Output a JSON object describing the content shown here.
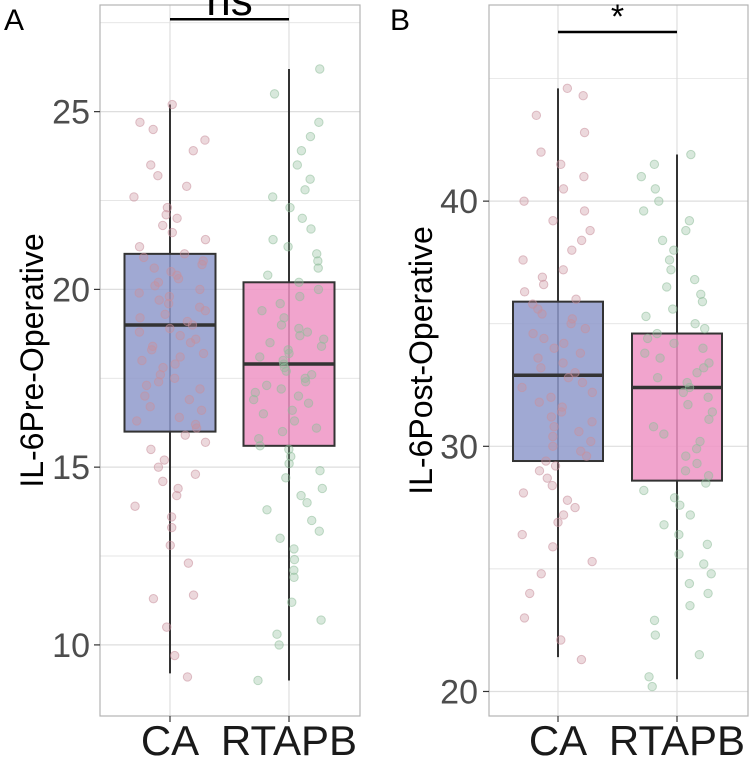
{
  "colors": {
    "box_ca": "#8f9acb",
    "box_rtapb": "#ee94c4",
    "jitter_ca": "#c98f9c",
    "jitter_rtapb": "#8fbd9a",
    "panel_border": "#b3b3b3",
    "grid": "#dedede",
    "line": "#333333",
    "tick_text": "#4d4d4d"
  },
  "chart_data": [
    {
      "type": "box",
      "panel_label": "A",
      "categories": [
        "CA",
        "RTAPB"
      ],
      "ylabel": "IL-6Pre-Operative",
      "xlabel": "",
      "ylim": [
        8.0,
        28.0
      ],
      "yticks": [
        10,
        15,
        20,
        25
      ],
      "grid": true,
      "significance": {
        "label": "ns",
        "y": 27.6
      },
      "boxes": [
        {
          "name": "CA",
          "min": 9.2,
          "q1": 16.0,
          "median": 19.0,
          "q3": 21.0,
          "max": 25.2
        },
        {
          "name": "RTAPB",
          "min": 9.0,
          "q1": 15.6,
          "median": 17.9,
          "q3": 20.2,
          "max": 26.2
        }
      ],
      "points": {
        "CA": [
          9.1,
          9.7,
          10.5,
          11.3,
          11.4,
          12.3,
          12.8,
          13.3,
          13.6,
          13.9,
          14.2,
          14.4,
          14.6,
          14.8,
          15.0,
          15.2,
          15.5,
          15.7,
          15.9,
          16.1,
          16.2,
          16.3,
          16.4,
          16.6,
          16.7,
          16.9,
          17.0,
          17.2,
          17.3,
          17.4,
          17.5,
          17.6,
          17.8,
          17.9,
          18.0,
          18.1,
          18.2,
          18.3,
          18.4,
          18.5,
          18.6,
          18.7,
          18.8,
          18.9,
          19.0,
          19.1,
          19.2,
          19.3,
          19.4,
          19.5,
          19.6,
          19.7,
          19.8,
          19.9,
          20.0,
          20.1,
          20.2,
          20.3,
          20.4,
          20.5,
          20.6,
          20.7,
          20.8,
          20.9,
          21.0,
          21.2,
          21.4,
          21.6,
          21.8,
          22.0,
          22.1,
          22.3,
          22.6,
          22.9,
          23.2,
          23.5,
          23.9,
          24.2,
          24.5,
          24.7,
          25.2
        ],
        "RTAPB": [
          9.0,
          10.0,
          10.3,
          10.7,
          11.2,
          11.9,
          12.1,
          12.4,
          12.7,
          13.0,
          13.2,
          13.5,
          13.8,
          14.0,
          14.2,
          14.4,
          14.7,
          14.9,
          15.1,
          15.3,
          15.5,
          15.6,
          15.8,
          16.0,
          16.1,
          16.3,
          16.5,
          16.6,
          16.8,
          16.9,
          17.0,
          17.1,
          17.2,
          17.3,
          17.4,
          17.5,
          17.6,
          17.7,
          17.8,
          17.9,
          18.0,
          18.1,
          18.2,
          18.3,
          18.4,
          18.5,
          18.6,
          18.7,
          18.8,
          18.9,
          19.0,
          19.2,
          19.4,
          19.6,
          19.8,
          20.0,
          20.2,
          20.4,
          20.6,
          20.8,
          21.0,
          21.2,
          21.4,
          21.7,
          22.0,
          22.3,
          22.6,
          22.8,
          23.1,
          23.5,
          23.9,
          24.3,
          24.7,
          25.5,
          26.2
        ]
      }
    },
    {
      "type": "box",
      "panel_label": "B",
      "categories": [
        "CA",
        "RTAPB"
      ],
      "ylabel": "IL-6Post-Operative",
      "xlabel": "",
      "ylim": [
        19.0,
        48.0
      ],
      "yticks": [
        20,
        30,
        40
      ],
      "grid": true,
      "significance": {
        "label": "*",
        "y": 46.9
      },
      "boxes": [
        {
          "name": "CA",
          "min": 21.4,
          "q1": 29.4,
          "median": 32.9,
          "q3": 35.9,
          "max": 44.6
        },
        {
          "name": "RTAPB",
          "min": 20.5,
          "q1": 28.6,
          "median": 32.4,
          "q3": 34.6,
          "max": 41.9
        }
      ],
      "points": {
        "CA": [
          21.3,
          22.1,
          23.0,
          24.0,
          24.8,
          25.3,
          25.9,
          26.4,
          26.9,
          27.2,
          27.5,
          27.8,
          28.1,
          28.4,
          28.7,
          29.0,
          29.2,
          29.4,
          29.6,
          29.8,
          30.0,
          30.2,
          30.4,
          30.6,
          30.8,
          31.0,
          31.2,
          31.4,
          31.6,
          31.8,
          32.0,
          32.2,
          32.4,
          32.6,
          32.8,
          33.0,
          33.2,
          33.4,
          33.6,
          33.8,
          34.0,
          34.2,
          34.4,
          34.6,
          34.8,
          35.0,
          35.2,
          35.4,
          35.6,
          35.8,
          36.0,
          36.3,
          36.6,
          36.9,
          37.2,
          37.6,
          38.0,
          38.4,
          38.8,
          39.2,
          39.6,
          40.0,
          40.5,
          41.0,
          41.5,
          42.0,
          42.8,
          43.5,
          44.3,
          44.6
        ],
        "RTAPB": [
          20.2,
          20.6,
          21.5,
          22.3,
          22.9,
          23.5,
          24.0,
          24.4,
          24.8,
          25.2,
          25.6,
          26.0,
          26.4,
          26.8,
          27.2,
          27.6,
          27.9,
          28.2,
          28.5,
          28.8,
          29.0,
          29.3,
          29.6,
          29.9,
          30.2,
          30.5,
          30.8,
          31.1,
          31.4,
          31.7,
          32.0,
          32.2,
          32.4,
          32.6,
          32.8,
          33.0,
          33.2,
          33.4,
          33.6,
          33.8,
          34.0,
          34.2,
          34.4,
          34.6,
          34.8,
          35.0,
          35.3,
          35.6,
          35.9,
          36.2,
          36.5,
          36.8,
          37.2,
          37.6,
          38.0,
          38.4,
          38.8,
          39.2,
          39.6,
          40.0,
          40.5,
          41.0,
          41.5,
          41.9
        ]
      }
    }
  ]
}
